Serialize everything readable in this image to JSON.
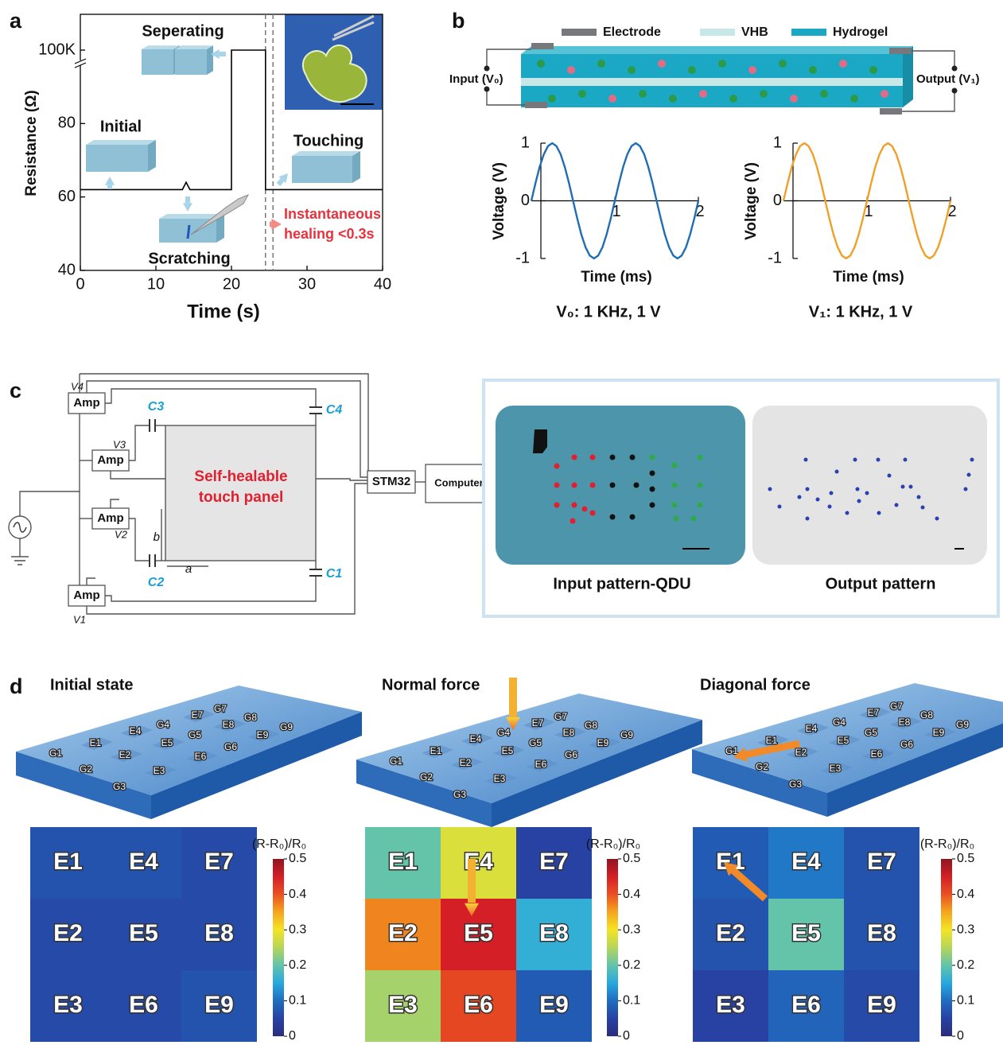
{
  "panel_labels": [
    "a",
    "b",
    "c",
    "d"
  ],
  "chart_data": [
    {
      "type": "line",
      "x": [
        0,
        13.5,
        14,
        14.5,
        20,
        20,
        24.5,
        24.5,
        40
      ],
      "values": [
        62,
        62,
        64,
        62,
        62,
        100000,
        100000,
        62,
        62
      ],
      "color": "#000000",
      "xlim": [
        0,
        40
      ],
      "xticks": [
        0,
        10,
        20,
        30,
        40
      ],
      "ylim": [
        40,
        100000
      ],
      "yticks": [
        40,
        60,
        80,
        {
          "value": 100000,
          "label": "100K"
        }
      ],
      "axis_break": true,
      "xlabel": "Time (s)",
      "ylabel": "Resistance (Ω)",
      "vlines": [
        24.5,
        25.5
      ],
      "annotations": {
        "seperating": "Seperating",
        "initial": "Initial",
        "touching": "Touching",
        "scratching": "Scratching",
        "healing": [
          "Instantaneous",
          "healing <0.3s"
        ]
      }
    },
    {
      "type": "line",
      "x": [
        0,
        0.05,
        0.1,
        0.15,
        0.2,
        0.25,
        0.3,
        0.35,
        0.4,
        0.45,
        0.5,
        0.55,
        0.6,
        0.65,
        0.7,
        0.75,
        0.8,
        0.85,
        0.9,
        0.95,
        1,
        1.05,
        1.1,
        1.15,
        1.2,
        1.25,
        1.3,
        1.35,
        1.4,
        1.45,
        1.5,
        1.55,
        1.6,
        1.65,
        1.7,
        1.75,
        1.8,
        1.85,
        1.9,
        1.95,
        2
      ],
      "values": [
        0,
        0.31,
        0.59,
        0.81,
        0.95,
        1,
        0.95,
        0.81,
        0.59,
        0.31,
        0,
        -0.31,
        -0.59,
        -0.81,
        -0.95,
        -1,
        -0.95,
        -0.81,
        -0.59,
        -0.31,
        0,
        0.31,
        0.59,
        0.81,
        0.95,
        1,
        0.95,
        0.81,
        0.59,
        0.31,
        0,
        -0.31,
        -0.59,
        -0.81,
        -0.95,
        -1,
        -0.95,
        -0.81,
        -0.59,
        -0.31,
        0
      ],
      "color": "#1f6db3",
      "xlim": [
        0,
        2
      ],
      "xticks": [
        1,
        2
      ],
      "ylim": [
        -1,
        1
      ],
      "yticks": [
        -1,
        0,
        1
      ],
      "xlabel": "Time (ms)",
      "ylabel": "Voltage (V)",
      "caption": "V₀: 1 KHz, 1 V"
    },
    {
      "type": "line",
      "x": [
        0,
        0.05,
        0.1,
        0.15,
        0.2,
        0.25,
        0.3,
        0.35,
        0.4,
        0.45,
        0.5,
        0.55,
        0.6,
        0.65,
        0.7,
        0.75,
        0.8,
        0.85,
        0.9,
        0.95,
        1,
        1.05,
        1.1,
        1.15,
        1.2,
        1.25,
        1.3,
        1.35,
        1.4,
        1.45,
        1.5,
        1.55,
        1.6,
        1.65,
        1.7,
        1.75,
        1.8,
        1.85,
        1.9,
        1.95,
        2
      ],
      "values": [
        0,
        0.31,
        0.59,
        0.81,
        0.95,
        1,
        0.95,
        0.81,
        0.59,
        0.31,
        0,
        -0.31,
        -0.59,
        -0.81,
        -0.95,
        -1,
        -0.95,
        -0.81,
        -0.59,
        -0.31,
        0,
        0.31,
        0.59,
        0.81,
        0.95,
        1,
        0.95,
        0.81,
        0.59,
        0.31,
        0,
        -0.31,
        -0.59,
        -0.81,
        -0.95,
        -1,
        -0.95,
        -0.81,
        -0.59,
        -0.31,
        0
      ],
      "color": "#f0a02a",
      "xlim": [
        0,
        2
      ],
      "xticks": [
        1,
        2
      ],
      "ylim": [
        -1,
        1
      ],
      "yticks": [
        -1,
        0,
        1
      ],
      "xlabel": "Time (ms)",
      "ylabel": "Voltage (V)",
      "caption": "V₁: 1 KHz, 1 V"
    },
    {
      "type": "heatmap",
      "labels": [
        [
          "E1",
          "E4",
          "E7"
        ],
        [
          "E2",
          "E5",
          "E8"
        ],
        [
          "E3",
          "E6",
          "E9"
        ]
      ],
      "values": [
        [
          0.07,
          0.07,
          0.06
        ],
        [
          0.06,
          0.06,
          0.06
        ],
        [
          0.06,
          0.06,
          0.07
        ]
      ],
      "zlim": [
        0,
        0.5
      ],
      "zticks": [
        0,
        0.1,
        0.2,
        0.3,
        0.4,
        0.5
      ],
      "colorbar_label": "(R-R₀)/R₀",
      "colormap": [
        "#2b2d7e",
        "#2742a2",
        "#1f6cc0",
        "#27a8de",
        "#63c4aa",
        "#b5d55a",
        "#f3e526",
        "#f4a61d",
        "#ea5122",
        "#d41f26",
        "#8e1520"
      ]
    },
    {
      "type": "heatmap",
      "labels": [
        [
          "E1",
          "E4",
          "E7"
        ],
        [
          "E2",
          "E5",
          "E8"
        ],
        [
          "E3",
          "E6",
          "E9"
        ]
      ],
      "values": [
        [
          0.2,
          0.28,
          0.05
        ],
        [
          0.37,
          0.45,
          0.16
        ],
        [
          0.24,
          0.41,
          0.08
        ]
      ],
      "zlim": [
        0,
        0.5
      ],
      "zticks": [
        0,
        0.1,
        0.2,
        0.3,
        0.4,
        0.5
      ],
      "colorbar_label": "(R-R₀)/R₀",
      "colormap": [
        "#2b2d7e",
        "#2742a2",
        "#1f6cc0",
        "#27a8de",
        "#63c4aa",
        "#b5d55a",
        "#f3e526",
        "#f4a61d",
        "#ea5122",
        "#d41f26",
        "#8e1520"
      ]
    },
    {
      "type": "heatmap",
      "labels": [
        [
          "E1",
          "E4",
          "E7"
        ],
        [
          "E2",
          "E5",
          "E8"
        ],
        [
          "E3",
          "E6",
          "E9"
        ]
      ],
      "values": [
        [
          0.08,
          0.11,
          0.07
        ],
        [
          0.07,
          0.2,
          0.07
        ],
        [
          0.05,
          0.09,
          0.06
        ]
      ],
      "zlim": [
        0,
        0.5
      ],
      "zticks": [
        0,
        0.1,
        0.2,
        0.3,
        0.4,
        0.5
      ],
      "colorbar_label": "(R-R₀)/R₀",
      "colormap": [
        "#2b2d7e",
        "#2742a2",
        "#1f6cc0",
        "#27a8de",
        "#63c4aa",
        "#b5d55a",
        "#f3e526",
        "#f4a61d",
        "#ea5122",
        "#d41f26",
        "#8e1520"
      ]
    }
  ],
  "schematic": {
    "legend": [
      "Electrode",
      "VHB",
      "Hydrogel"
    ],
    "legend_colors": [
      "#77787b",
      "#c8e8e8",
      "#1aa8c4"
    ],
    "input": "Input (V₀)",
    "output": "Output (V₁)"
  },
  "circuit": {
    "amps": [
      "Amp",
      "Amp",
      "Amp",
      "Amp"
    ],
    "voltages": [
      "V4",
      "V3",
      "V2",
      "V1"
    ],
    "capacitors": [
      "C3",
      "C4",
      "C2",
      "C1"
    ],
    "a": "a",
    "b": "b",
    "panel": [
      "Self-healable",
      "touch panel"
    ],
    "mcu": "STM32",
    "computer": "Computer"
  },
  "photos": {
    "captions": [
      "Input pattern-QDU",
      "Output pattern"
    ]
  },
  "illustrations": [
    {
      "title": "Initial state",
      "labels": [
        "G1",
        "G2",
        "G3",
        "E1",
        "E2",
        "E3",
        "G4",
        "G5",
        "G6",
        "E4",
        "E5",
        "E6",
        "G7",
        "G8",
        "G9",
        "E7",
        "E8",
        "E9"
      ]
    },
    {
      "title": "Normal force",
      "labels": [
        "G1",
        "G2",
        "G3",
        "E1",
        "E2",
        "E3",
        "G4",
        "G5",
        "G6",
        "E4",
        "E5",
        "E6",
        "G7",
        "G8",
        "G9",
        "E7",
        "E8",
        "E9"
      ]
    },
    {
      "title": "Diagonal force",
      "labels": [
        "G1",
        "G2",
        "G3",
        "E1",
        "E2",
        "E3",
        "G4",
        "G5",
        "G6",
        "E4",
        "E5",
        "E6",
        "G7",
        "G8",
        "G9",
        "E7",
        "E8",
        "E9"
      ]
    }
  ]
}
